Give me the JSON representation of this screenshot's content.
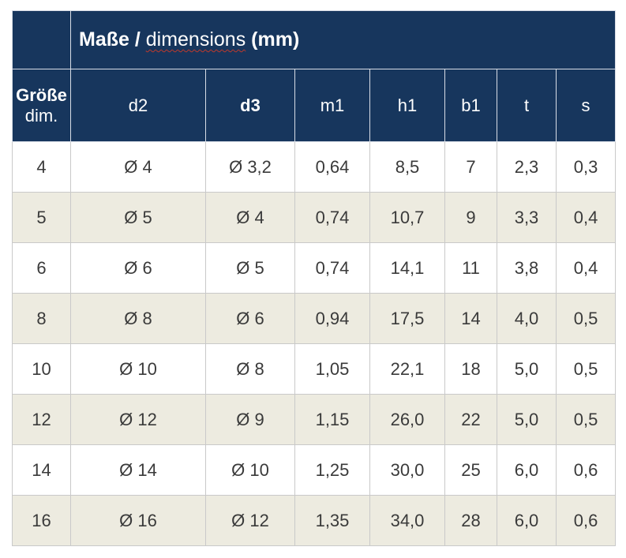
{
  "title": {
    "part1": "Maße /",
    "part2": "dimensions",
    "part3": "(mm)"
  },
  "size_header": {
    "line1": "Größe",
    "line2": "dim."
  },
  "columns": [
    "d2",
    "d3",
    "m1",
    "h1",
    "b1",
    "t",
    "s"
  ],
  "rows": [
    [
      "4",
      "Ø 4",
      "Ø 3,2",
      "0,64",
      "8,5",
      "7",
      "2,3",
      "0,3"
    ],
    [
      "5",
      "Ø 5",
      "Ø 4",
      "0,74",
      "10,7",
      "9",
      "3,3",
      "0,4"
    ],
    [
      "6",
      "Ø 6",
      "Ø 5",
      "0,74",
      "14,1",
      "11",
      "3,8",
      "0,4"
    ],
    [
      "8",
      "Ø 8",
      "Ø 6",
      "0,94",
      "17,5",
      "14",
      "4,0",
      "0,5"
    ],
    [
      "10",
      "Ø 10",
      "Ø 8",
      "1,05",
      "22,1",
      "18",
      "5,0",
      "0,5"
    ],
    [
      "12",
      "Ø 12",
      "Ø 9",
      "1,15",
      "26,0",
      "22",
      "5,0",
      "0,5"
    ],
    [
      "14",
      "Ø 14",
      "Ø 10",
      "1,25",
      "30,0",
      "25",
      "6,0",
      "0,6"
    ],
    [
      "16",
      "Ø 16",
      "Ø 12",
      "1,35",
      "34,0",
      "28",
      "6,0",
      "0,6"
    ]
  ],
  "colors": {
    "header_bg": "#17365d",
    "header_text": "#ffffff",
    "stripe_bg": "#edebe0",
    "text": "#3a3a3a"
  }
}
